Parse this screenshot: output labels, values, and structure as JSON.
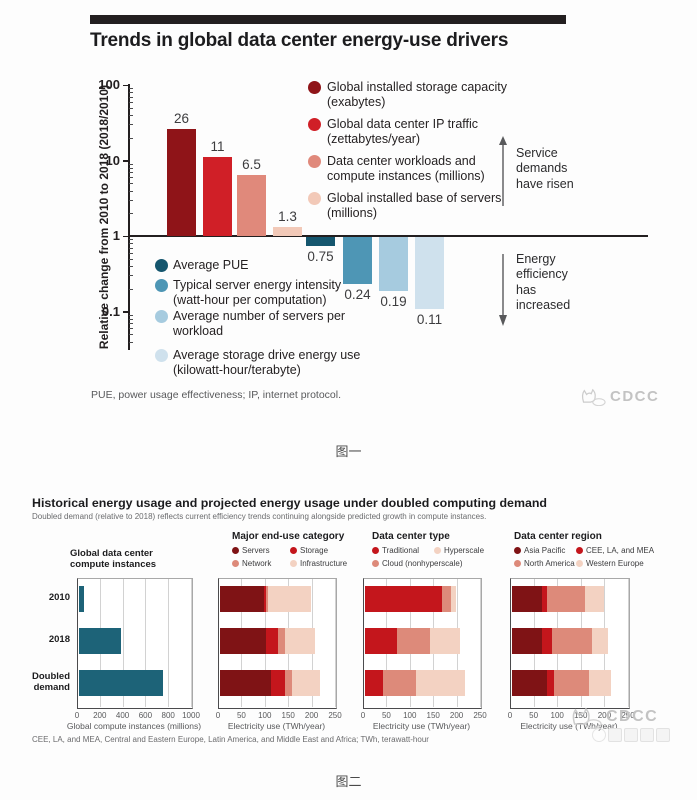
{
  "watermark": {
    "label": "CDCC"
  },
  "captions": {
    "fig1": "图一",
    "fig2": "图二"
  },
  "chart_data": [
    {
      "id": "trends-drivers",
      "type": "bar",
      "scale": "log-y",
      "title": "Trends in global data center energy-use drivers",
      "ylabel": "Relative change from 2010 to 2018 (2018/2010)",
      "ylim": [
        0.1,
        100
      ],
      "yticks": [
        100,
        10,
        1,
        0.1
      ],
      "baseline": 1,
      "grid": false,
      "footnote": "PUE, power usage effectiveness; IP, internet protocol.",
      "annotations": {
        "risen": "Service demands have risen",
        "efficiency": "Energy efficiency has increased"
      },
      "bars": [
        {
          "label": "Global installed storage capacity (exabytes)",
          "value": 26,
          "display": "26",
          "color": "#8f1418",
          "group": "service"
        },
        {
          "label": "Global data center IP traffic (zettabytes/year)",
          "value": 11,
          "display": "11",
          "color": "#d01f27",
          "group": "service"
        },
        {
          "label": "Data center workloads and compute instances (millions)",
          "value": 6.5,
          "display": "6.5",
          "color": "#e0897b",
          "group": "service"
        },
        {
          "label": "Global installed base of servers (millions)",
          "value": 1.3,
          "display": "1.3",
          "color": "#f2c9b8",
          "group": "service"
        },
        {
          "label": "Average PUE",
          "value": 0.75,
          "display": "0.75",
          "color": "#15566e",
          "group": "efficiency"
        },
        {
          "label": "Typical server energy intensity (watt-hour per computation)",
          "value": 0.24,
          "display": "0.24",
          "color": "#4e96b5",
          "group": "efficiency"
        },
        {
          "label": "Average number of servers per workload",
          "value": 0.19,
          "display": "0.19",
          "color": "#a6cbdf",
          "group": "efficiency"
        },
        {
          "label": "Average storage drive energy use (kilowatt-hour/terabyte)",
          "value": 0.11,
          "display": "0.11",
          "color": "#cfe1ed",
          "group": "efficiency"
        }
      ]
    },
    {
      "id": "energy-usage-projection",
      "type": "stacked-bar-horizontal",
      "title": "Historical energy usage and projected energy usage under doubled computing demand",
      "subtitle": "Doubled demand (relative to 2018) reflects current efficiency trends continuing alongside predicted growth in compute instances.",
      "categories": [
        "2010",
        "2018",
        "Doubled demand"
      ],
      "category_label_lines": [
        [
          "2010"
        ],
        [
          "2018"
        ],
        [
          "Doubled",
          "demand"
        ]
      ],
      "footnote": "CEE, LA, and MEA, Central and Eastern Europe, Latin America, and Middle East and Africa; TWh, terawatt-hour",
      "panels": [
        {
          "title": "Global data center compute instances",
          "title_lines": [
            "Global data center",
            "compute instances"
          ],
          "xlabel": "Global compute instances (millions)",
          "xlim": [
            0,
            1000
          ],
          "xticks": [
            0,
            200,
            400,
            600,
            800,
            1000
          ],
          "legend_order": [],
          "series": [
            {
              "name": "Compute instances",
              "color": "#1d6378",
              "values": [
                50,
                370,
                740
              ]
            }
          ]
        },
        {
          "title": "Major end-use category",
          "xlabel": "Electricity use (TWh/year)",
          "xlim": [
            0,
            250
          ],
          "xticks": [
            0,
            50,
            100,
            150,
            200,
            250
          ],
          "legend_order": [
            0,
            1,
            2,
            3
          ],
          "series": [
            {
              "name": "Servers",
              "color": "#7f1315",
              "values": [
                95,
                100,
                110
              ]
            },
            {
              "name": "Storage",
              "color": "#c4161c",
              "values": [
                4,
                25,
                30
              ]
            },
            {
              "name": "Network",
              "color": "#dd8a7a",
              "values": [
                4,
                15,
                15
              ]
            },
            {
              "name": "Infrastructure",
              "color": "#f3d2c2",
              "values": [
                92,
                65,
                60
              ]
            }
          ]
        },
        {
          "title": "Data center type",
          "xlabel": "Electricity use (TWh/year)",
          "xlim": [
            0,
            250
          ],
          "xticks": [
            0,
            50,
            100,
            150,
            200,
            250
          ],
          "legend_order": [
            0,
            2,
            1
          ],
          "series": [
            {
              "name": "Traditional",
              "color": "#c4161c",
              "values": [
                165,
                70,
                40
              ]
            },
            {
              "name": "Cloud (nonhyperscale)",
              "color": "#dd8a7a",
              "values": [
                20,
                70,
                70
              ]
            },
            {
              "name": "Hyperscale",
              "color": "#f3d2c2",
              "values": [
                10,
                65,
                105
              ]
            }
          ]
        },
        {
          "title": "Data center region",
          "xlabel": "Electricity use (TWh/year)",
          "xlim": [
            0,
            250
          ],
          "xticks": [
            0,
            50,
            100,
            150,
            200,
            250
          ],
          "legend_order": [
            0,
            1,
            2,
            3
          ],
          "series": [
            {
              "name": "Asia Pacific",
              "color": "#7f1315",
              "values": [
                65,
                65,
                75
              ]
            },
            {
              "name": "CEE, LA, and MEA",
              "color": "#c4161c",
              "values": [
                10,
                20,
                15
              ]
            },
            {
              "name": "North America",
              "color": "#dd8a7a",
              "values": [
                80,
                85,
                75
              ]
            },
            {
              "name": "Western Europe",
              "color": "#f3d2c2",
              "values": [
                40,
                35,
                45
              ]
            }
          ]
        }
      ]
    }
  ]
}
